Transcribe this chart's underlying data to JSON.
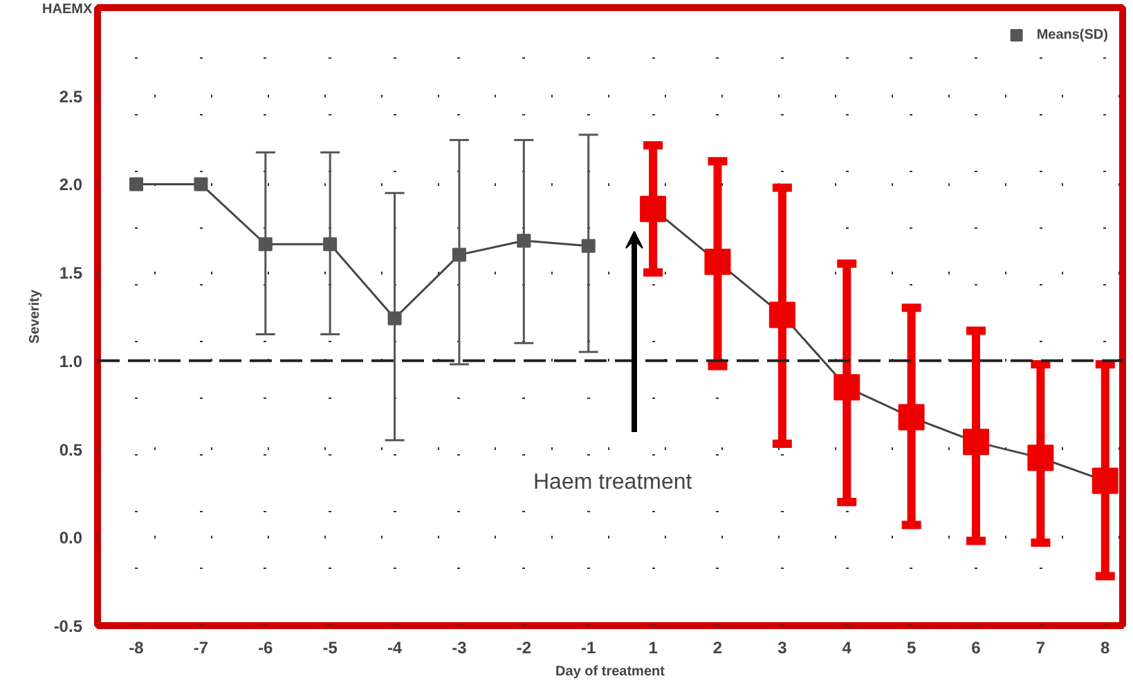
{
  "chart_data": {
    "type": "line",
    "title": "HAEMX",
    "xlabel": "Day of treatment",
    "ylabel": "Severity",
    "categories": [
      "-8",
      "-7",
      "-6",
      "-5",
      "-4",
      "-3",
      "-2",
      "-1",
      "1",
      "2",
      "3",
      "4",
      "5",
      "6",
      "7",
      "8"
    ],
    "ylim": [
      -0.5,
      3.0
    ],
    "yticks": [
      -0.5,
      {
        "value": 0,
        "label": "0.0"
      },
      0.5,
      {
        "value": 1,
        "label": "1.0"
      },
      1.5,
      {
        "value": 2,
        "label": "2.0"
      },
      2.5
    ],
    "series": [
      {
        "name": "Means(SD)",
        "color": "#555555",
        "marker": "square",
        "values": [
          2.0,
          2.0,
          1.66,
          1.66,
          1.24,
          1.6,
          1.68,
          1.65,
          null,
          null,
          null,
          null,
          null,
          null,
          null,
          null
        ],
        "errors": [
          null,
          null,
          [
            1.15,
            2.18
          ],
          [
            1.15,
            2.18
          ],
          [
            0.55,
            1.95
          ],
          [
            0.98,
            2.25
          ],
          [
            1.1,
            2.25
          ],
          [
            1.05,
            2.28
          ],
          null,
          null,
          null,
          null,
          null,
          null,
          null,
          null
        ]
      },
      {
        "color": "#ee0000",
        "marker": "square",
        "values": [
          null,
          null,
          null,
          null,
          null,
          null,
          null,
          null,
          1.86,
          1.56,
          1.26,
          0.85,
          0.68,
          0.54,
          0.45,
          0.32
        ],
        "errors": [
          null,
          null,
          null,
          null,
          null,
          null,
          null,
          null,
          [
            1.5,
            2.22
          ],
          [
            0.97,
            2.13
          ],
          [
            0.53,
            1.98
          ],
          [
            0.2,
            1.55
          ],
          [
            0.07,
            1.3
          ],
          [
            -0.02,
            1.17
          ],
          [
            -0.03,
            0.98
          ],
          [
            -0.22,
            0.98
          ]
        ]
      }
    ],
    "ref_lines": [
      {
        "axis": "y",
        "value": 1.0,
        "line_style": "dashed",
        "color": "#222222"
      }
    ],
    "annotations": [
      "Haem treatment"
    ],
    "grid": true,
    "legend": "top right"
  }
}
